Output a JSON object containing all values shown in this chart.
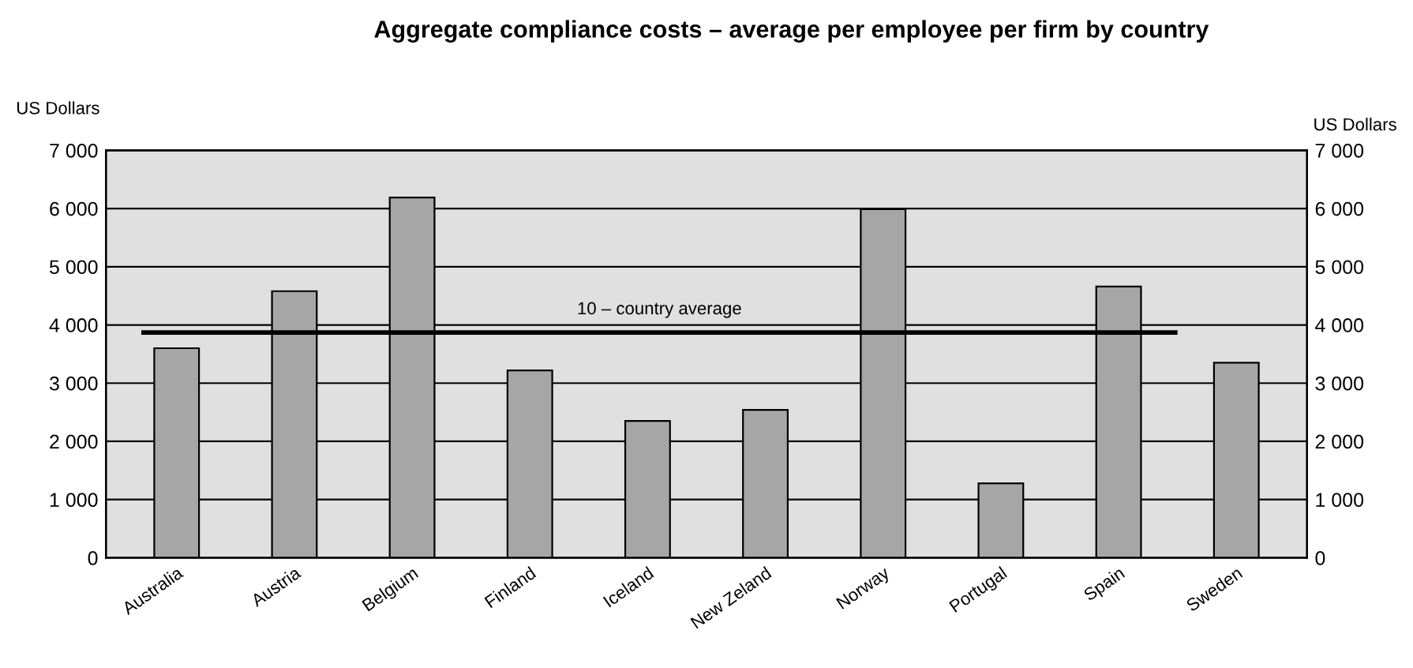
{
  "chart_data": {
    "type": "bar",
    "title": "Aggregate compliance costs – average per employee per firm by country",
    "ylabel": "US Dollars",
    "y2label": "US Dollars",
    "categories": [
      "Australia",
      "Austria",
      "Belgium",
      "Finland",
      "Iceland",
      "New Zeland",
      "Norway",
      "Portugal",
      "Spain",
      "Sweden"
    ],
    "values": [
      3600,
      4580,
      6190,
      3220,
      2350,
      2540,
      5990,
      1280,
      4660,
      3350
    ],
    "color": "#a6a6a6",
    "ylim": [
      0,
      7000
    ],
    "yticks": [
      0,
      {
        "value": 1000,
        "label": "1 000"
      },
      {
        "value": 2000,
        "label": "2 000"
      },
      {
        "value": 3000,
        "label": "3 000"
      },
      {
        "value": 4000,
        "label": "4 000"
      },
      {
        "value": 5000,
        "label": "5 000"
      },
      {
        "value": 6000,
        "label": "6 000"
      },
      {
        "value": 7000,
        "label": "7 000"
      }
    ],
    "y2lim": [
      0,
      7000
    ],
    "y2ticks": [
      0,
      {
        "value": 1000,
        "label": "1 000"
      },
      {
        "value": 2000,
        "label": "2 000"
      },
      {
        "value": 3000,
        "label": "3 000"
      },
      {
        "value": 4000,
        "label": "4 000"
      },
      {
        "value": 5000,
        "label": "5 000"
      },
      {
        "value": 6000,
        "label": "6 000"
      },
      {
        "value": 7000,
        "label": "7 000"
      }
    ],
    "ref_lines": [
      {
        "axis": "y",
        "value": 3870,
        "label": "10 – country average",
        "color": "#000000"
      }
    ],
    "grid": "y"
  }
}
